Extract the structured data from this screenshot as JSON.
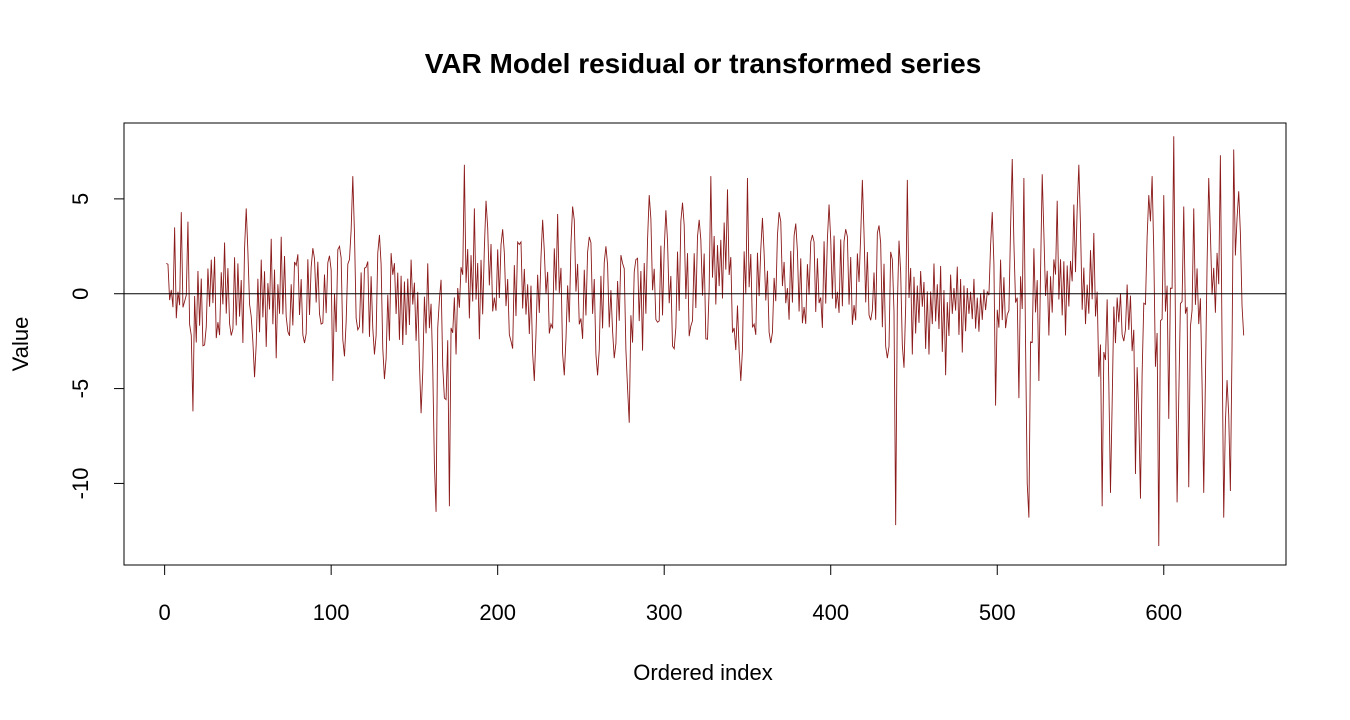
{
  "chart_data": {
    "type": "line",
    "title": "VAR Model residual or transformed series",
    "xlabel": "Ordered index",
    "ylabel": "Value",
    "xlim": [
      -24.4,
      673.4
    ],
    "ylim": [
      -14.3,
      9.0
    ],
    "x_ticks": [
      0,
      100,
      200,
      300,
      400,
      500,
      600
    ],
    "y_ticks": [
      -10,
      -5,
      0,
      5
    ],
    "series_color": "#8B1A1A",
    "reference_line_y": 0,
    "grid": false,
    "legend": "none",
    "series": [
      {
        "x_start": 1,
        "x_end": 648,
        "anchors": [
          [
            1,
            1.6
          ],
          [
            4,
            0.2
          ],
          [
            6,
            3.5
          ],
          [
            8,
            0.1
          ],
          [
            10,
            4.3
          ],
          [
            12,
            -0.4
          ],
          [
            14,
            3.8
          ],
          [
            16,
            -2.2
          ],
          [
            17,
            -6.2
          ],
          [
            20,
            1.2
          ],
          [
            24,
            -2.7
          ],
          [
            28,
            1.8
          ],
          [
            32,
            -1.5
          ],
          [
            36,
            2.7
          ],
          [
            40,
            -2.2
          ],
          [
            44,
            1.6
          ],
          [
            47,
            -2.6
          ],
          [
            49,
            4.5
          ],
          [
            52,
            -1.2
          ],
          [
            54,
            -4.4
          ],
          [
            58,
            1.8
          ],
          [
            61,
            -2.8
          ],
          [
            64,
            2.9
          ],
          [
            67,
            -3.4
          ],
          [
            70,
            3.0
          ],
          [
            74,
            -2.0
          ],
          [
            79,
            1.5
          ],
          [
            84,
            -2.6
          ],
          [
            89,
            2.4
          ],
          [
            94,
            -1.6
          ],
          [
            99,
            2.0
          ],
          [
            101,
            -4.6
          ],
          [
            105,
            2.5
          ],
          [
            108,
            -3.3
          ],
          [
            111,
            1.8
          ],
          [
            113,
            6.2
          ],
          [
            116,
            -1.9
          ],
          [
            121,
            1.4
          ],
          [
            126,
            -3.2
          ],
          [
            129,
            3.1
          ],
          [
            132,
            -4.5
          ],
          [
            137,
            1.0
          ],
          [
            143,
            -2.7
          ],
          [
            148,
            1.8
          ],
          [
            154,
            -6.3
          ],
          [
            158,
            1.6
          ],
          [
            162,
            -9.0
          ],
          [
            163,
            -11.5
          ],
          [
            165,
            -0.3
          ],
          [
            168,
            -5.5
          ],
          [
            171,
            -11.2
          ],
          [
            172,
            -1.8
          ],
          [
            175,
            -3.2
          ],
          [
            178,
            1.4
          ],
          [
            180,
            6.8
          ],
          [
            183,
            -1.3
          ],
          [
            186,
            4.5
          ],
          [
            189,
            -2.4
          ],
          [
            193,
            4.9
          ],
          [
            198,
            -0.2
          ],
          [
            203,
            3.4
          ],
          [
            208,
            -2.5
          ],
          [
            213,
            2.6
          ],
          [
            217,
            -1.1
          ],
          [
            222,
            -4.6
          ],
          [
            227,
            3.9
          ],
          [
            232,
            -1.6
          ],
          [
            236,
            4.2
          ],
          [
            240,
            -4.3
          ],
          [
            245,
            4.6
          ],
          [
            250,
            -1.3
          ],
          [
            255,
            3.0
          ],
          [
            260,
            -4.3
          ],
          [
            265,
            2.5
          ],
          [
            270,
            -3.4
          ],
          [
            275,
            1.6
          ],
          [
            278,
            -5.0
          ],
          [
            279,
            -6.8
          ],
          [
            283,
            1.8
          ],
          [
            287,
            -3.0
          ],
          [
            291,
            5.2
          ],
          [
            296,
            -1.5
          ],
          [
            301,
            4.4
          ],
          [
            306,
            -2.9
          ],
          [
            311,
            4.8
          ],
          [
            316,
            -1.7
          ],
          [
            321,
            3.9
          ],
          [
            326,
            -2.4
          ],
          [
            328,
            6.2
          ],
          [
            333,
            0.4
          ],
          [
            338,
            5.5
          ],
          [
            342,
            -1.8
          ],
          [
            346,
            -4.6
          ],
          [
            350,
            6.1
          ],
          [
            354,
            -1.6
          ],
          [
            359,
            4.0
          ],
          [
            364,
            -2.6
          ],
          [
            369,
            4.3
          ],
          [
            374,
            0.3
          ],
          [
            379,
            3.7
          ],
          [
            384,
            -0.7
          ],
          [
            389,
            3.1
          ],
          [
            394,
            -0.2
          ],
          [
            399,
            4.7
          ],
          [
            404,
            0.1
          ],
          [
            409,
            3.4
          ],
          [
            414,
            -0.6
          ],
          [
            419,
            6.0
          ],
          [
            424,
            -1.4
          ],
          [
            429,
            3.6
          ],
          [
            434,
            -3.4
          ],
          [
            437,
            1.8
          ],
          [
            439,
            -12.2
          ],
          [
            441,
            2.8
          ],
          [
            444,
            -3.9
          ],
          [
            446,
            6.0
          ],
          [
            449,
            -3.2
          ],
          [
            454,
            1.2
          ],
          [
            459,
            -3.2
          ],
          [
            464,
            0.5
          ],
          [
            469,
            -4.3
          ],
          [
            474,
            0.3
          ],
          [
            479,
            -3.1
          ],
          [
            484,
            0.1
          ],
          [
            489,
            -2.0
          ],
          [
            494,
            0.1
          ],
          [
            497,
            4.3
          ],
          [
            499,
            -5.9
          ],
          [
            502,
            1.8
          ],
          [
            506,
            -1.1
          ],
          [
            509,
            7.1
          ],
          [
            513,
            -5.5
          ],
          [
            516,
            6.1
          ],
          [
            518,
            -10.0
          ],
          [
            519,
            -11.8
          ],
          [
            522,
            2.4
          ],
          [
            525,
            -4.6
          ],
          [
            527,
            6.3
          ],
          [
            531,
            -2.2
          ],
          [
            536,
            4.9
          ],
          [
            541,
            -2.2
          ],
          [
            546,
            4.7
          ],
          [
            549,
            6.8
          ],
          [
            553,
            -1.6
          ],
          [
            558,
            3.2
          ],
          [
            563,
            -11.2
          ],
          [
            566,
            -0.3
          ],
          [
            568,
            -10.5
          ],
          [
            572,
            -0.2
          ],
          [
            576,
            -2.5
          ],
          [
            580,
            -0.1
          ],
          [
            583,
            -9.5
          ],
          [
            586,
            -10.8
          ],
          [
            588,
            -0.5
          ],
          [
            591,
            5.2
          ],
          [
            593,
            6.2
          ],
          [
            597,
            -13.3
          ],
          [
            600,
            5.2
          ],
          [
            603,
            -6.6
          ],
          [
            606,
            8.3
          ],
          [
            608,
            -11.0
          ],
          [
            612,
            4.6
          ],
          [
            615,
            -10.2
          ],
          [
            618,
            4.5
          ],
          [
            621,
            -1.6
          ],
          [
            624,
            -10.5
          ],
          [
            627,
            6.1
          ],
          [
            631,
            -1.0
          ],
          [
            634,
            7.3
          ],
          [
            636,
            -11.8
          ],
          [
            640,
            -10.4
          ],
          [
            642,
            7.6
          ],
          [
            645,
            5.4
          ],
          [
            648,
            -2.2
          ]
        ]
      }
    ]
  }
}
